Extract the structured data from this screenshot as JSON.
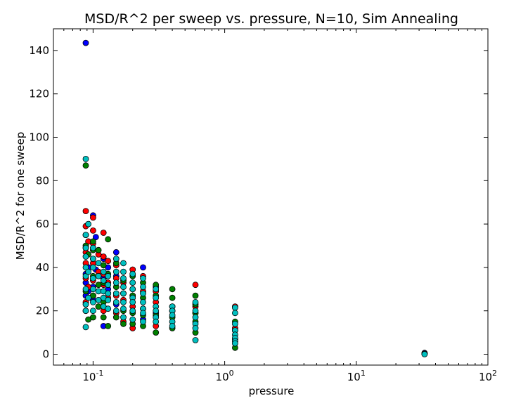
{
  "chart_data": {
    "type": "scatter",
    "title": "MSD/R^2 per sweep vs. pressure, N=10, Sim Annealing",
    "xlabel": "pressure",
    "ylabel": "MSD/R^2 for one sweep",
    "xscale": "log",
    "xlim": [
      0.05,
      100
    ],
    "ylim": [
      -5,
      150
    ],
    "grid": false,
    "x_tick_labels": [
      {
        "base": "10",
        "exp": "-1",
        "value": 0.1
      },
      {
        "base": "10",
        "exp": "0",
        "value": 1
      },
      {
        "base": "10",
        "exp": "1",
        "value": 10
      },
      {
        "base": "10",
        "exp": "2",
        "value": 100
      }
    ],
    "y_tick_labels": [
      "0",
      "20",
      "40",
      "60",
      "80",
      "100",
      "120",
      "140"
    ],
    "y_ticks": [
      0,
      20,
      40,
      60,
      80,
      100,
      120,
      140
    ],
    "x_minor_ticks": [
      0.05,
      0.06,
      0.07,
      0.08,
      0.09,
      0.2,
      0.3,
      0.4,
      0.5,
      0.6,
      0.7,
      0.8,
      0.9,
      2,
      3,
      4,
      5,
      6,
      7,
      8,
      9,
      20,
      30,
      40,
      50,
      60,
      70,
      80,
      90
    ],
    "series": [
      {
        "color": "#0000ff",
        "points": [
          [
            0.088,
            143.5
          ],
          [
            0.088,
            55
          ],
          [
            0.088,
            49
          ],
          [
            0.088,
            37
          ],
          [
            0.088,
            33
          ],
          [
            0.088,
            27
          ],
          [
            0.092,
            40
          ],
          [
            0.092,
            29
          ],
          [
            0.1,
            64
          ],
          [
            0.1,
            44
          ],
          [
            0.1,
            31
          ],
          [
            0.1,
            25
          ],
          [
            0.105,
            54
          ],
          [
            0.105,
            39
          ],
          [
            0.12,
            44
          ],
          [
            0.12,
            35
          ],
          [
            0.12,
            13
          ],
          [
            0.13,
            40
          ],
          [
            0.13,
            30
          ],
          [
            0.15,
            47
          ],
          [
            0.15,
            36
          ],
          [
            0.15,
            23
          ],
          [
            0.2,
            27
          ],
          [
            0.24,
            40
          ],
          [
            0.24,
            16
          ],
          [
            0.3,
            31
          ],
          [
            0.3,
            19
          ],
          [
            0.4,
            20
          ],
          [
            33,
            0.6
          ]
        ]
      },
      {
        "color": "#ff0000",
        "points": [
          [
            0.088,
            66
          ],
          [
            0.088,
            59
          ],
          [
            0.088,
            47
          ],
          [
            0.088,
            42
          ],
          [
            0.088,
            35
          ],
          [
            0.088,
            24
          ],
          [
            0.092,
            52
          ],
          [
            0.092,
            31
          ],
          [
            0.1,
            63
          ],
          [
            0.1,
            57
          ],
          [
            0.1,
            51
          ],
          [
            0.1,
            42
          ],
          [
            0.1,
            34
          ],
          [
            0.1,
            27
          ],
          [
            0.11,
            46
          ],
          [
            0.11,
            38
          ],
          [
            0.11,
            22
          ],
          [
            0.12,
            56
          ],
          [
            0.12,
            45
          ],
          [
            0.12,
            37
          ],
          [
            0.12,
            32
          ],
          [
            0.12,
            20
          ],
          [
            0.13,
            43
          ],
          [
            0.13,
            33
          ],
          [
            0.13,
            26
          ],
          [
            0.15,
            41
          ],
          [
            0.15,
            35
          ],
          [
            0.15,
            27
          ],
          [
            0.15,
            19
          ],
          [
            0.17,
            33
          ],
          [
            0.17,
            25
          ],
          [
            0.17,
            15
          ],
          [
            0.2,
            39
          ],
          [
            0.2,
            30
          ],
          [
            0.2,
            22
          ],
          [
            0.2,
            12
          ],
          [
            0.24,
            36
          ],
          [
            0.24,
            29
          ],
          [
            0.24,
            21
          ],
          [
            0.3,
            29
          ],
          [
            0.3,
            24
          ],
          [
            0.3,
            13
          ],
          [
            0.4,
            20
          ],
          [
            0.6,
            32
          ],
          [
            0.6,
            22
          ],
          [
            0.6,
            19
          ],
          [
            1.2,
            22
          ],
          [
            1.2,
            12
          ],
          [
            33,
            0.3
          ]
        ]
      },
      {
        "color": "#008000",
        "points": [
          [
            0.088,
            87
          ],
          [
            0.088,
            50
          ],
          [
            0.088,
            29
          ],
          [
            0.088,
            20
          ],
          [
            0.092,
            46
          ],
          [
            0.092,
            16
          ],
          [
            0.1,
            52
          ],
          [
            0.1,
            48
          ],
          [
            0.1,
            36
          ],
          [
            0.1,
            27
          ],
          [
            0.1,
            17
          ],
          [
            0.11,
            48
          ],
          [
            0.11,
            32
          ],
          [
            0.11,
            22
          ],
          [
            0.12,
            41
          ],
          [
            0.12,
            33
          ],
          [
            0.12,
            24
          ],
          [
            0.12,
            17
          ],
          [
            0.13,
            53
          ],
          [
            0.13,
            37
          ],
          [
            0.13,
            28
          ],
          [
            0.13,
            13
          ],
          [
            0.15,
            42
          ],
          [
            0.15,
            31
          ],
          [
            0.15,
            17
          ],
          [
            0.17,
            34
          ],
          [
            0.17,
            28
          ],
          [
            0.17,
            20
          ],
          [
            0.17,
            14
          ],
          [
            0.2,
            36
          ],
          [
            0.2,
            27
          ],
          [
            0.2,
            19
          ],
          [
            0.2,
            14
          ],
          [
            0.24,
            33
          ],
          [
            0.24,
            26
          ],
          [
            0.24,
            18
          ],
          [
            0.24,
            13
          ],
          [
            0.3,
            32
          ],
          [
            0.3,
            27
          ],
          [
            0.3,
            18
          ],
          [
            0.3,
            10
          ],
          [
            0.4,
            30
          ],
          [
            0.4,
            26
          ],
          [
            0.4,
            22
          ],
          [
            0.4,
            17
          ],
          [
            0.4,
            12
          ],
          [
            0.6,
            27
          ],
          [
            0.6,
            23
          ],
          [
            0.6,
            19
          ],
          [
            0.6,
            15
          ],
          [
            0.6,
            10
          ],
          [
            1.2,
            15
          ],
          [
            1.2,
            11
          ],
          [
            1.2,
            7
          ],
          [
            1.2,
            3
          ],
          [
            33,
            0.1
          ]
        ]
      },
      {
        "color": "#00bfbf",
        "points": [
          [
            0.088,
            90
          ],
          [
            0.088,
            55
          ],
          [
            0.088,
            49
          ],
          [
            0.088,
            45
          ],
          [
            0.088,
            40
          ],
          [
            0.088,
            36
          ],
          [
            0.088,
            30
          ],
          [
            0.088,
            23
          ],
          [
            0.088,
            20
          ],
          [
            0.088,
            12.5
          ],
          [
            0.092,
            60
          ],
          [
            0.092,
            38
          ],
          [
            0.092,
            26
          ],
          [
            0.1,
            49
          ],
          [
            0.1,
            44
          ],
          [
            0.1,
            40
          ],
          [
            0.1,
            35
          ],
          [
            0.1,
            30
          ],
          [
            0.1,
            24
          ],
          [
            0.1,
            20
          ],
          [
            0.11,
            42
          ],
          [
            0.11,
            36
          ],
          [
            0.11,
            29
          ],
          [
            0.11,
            25
          ],
          [
            0.12,
            38
          ],
          [
            0.12,
            34
          ],
          [
            0.12,
            29
          ],
          [
            0.12,
            26
          ],
          [
            0.12,
            22
          ],
          [
            0.13,
            36
          ],
          [
            0.13,
            32
          ],
          [
            0.13,
            28
          ],
          [
            0.13,
            25
          ],
          [
            0.13,
            21
          ],
          [
            0.15,
            44
          ],
          [
            0.15,
            38
          ],
          [
            0.15,
            33
          ],
          [
            0.15,
            28
          ],
          [
            0.15,
            24
          ],
          [
            0.15,
            20
          ],
          [
            0.17,
            42
          ],
          [
            0.17,
            38
          ],
          [
            0.17,
            35
          ],
          [
            0.17,
            31
          ],
          [
            0.17,
            28
          ],
          [
            0.17,
            24
          ],
          [
            0.17,
            21
          ],
          [
            0.17,
            17
          ],
          [
            0.2,
            37
          ],
          [
            0.2,
            33
          ],
          [
            0.2,
            30
          ],
          [
            0.2,
            26
          ],
          [
            0.2,
            24
          ],
          [
            0.2,
            20
          ],
          [
            0.2,
            16
          ],
          [
            0.24,
            35
          ],
          [
            0.24,
            31
          ],
          [
            0.24,
            28
          ],
          [
            0.24,
            24
          ],
          [
            0.24,
            21
          ],
          [
            0.24,
            19
          ],
          [
            0.24,
            15
          ],
          [
            0.3,
            30
          ],
          [
            0.3,
            26
          ],
          [
            0.3,
            22
          ],
          [
            0.3,
            20
          ],
          [
            0.3,
            17
          ],
          [
            0.3,
            15
          ],
          [
            0.4,
            22
          ],
          [
            0.4,
            20
          ],
          [
            0.4,
            18
          ],
          [
            0.4,
            15
          ],
          [
            0.4,
            13
          ],
          [
            0.6,
            24
          ],
          [
            0.6,
            20
          ],
          [
            0.6,
            17
          ],
          [
            0.6,
            14
          ],
          [
            0.6,
            12
          ],
          [
            0.6,
            6.5
          ],
          [
            1.2,
            21.5
          ],
          [
            1.2,
            19
          ],
          [
            1.2,
            14
          ],
          [
            1.2,
            11
          ],
          [
            1.2,
            9
          ],
          [
            1.2,
            7.5
          ],
          [
            1.2,
            6
          ],
          [
            1.2,
            5
          ],
          [
            33,
            0.0
          ]
        ]
      }
    ]
  }
}
